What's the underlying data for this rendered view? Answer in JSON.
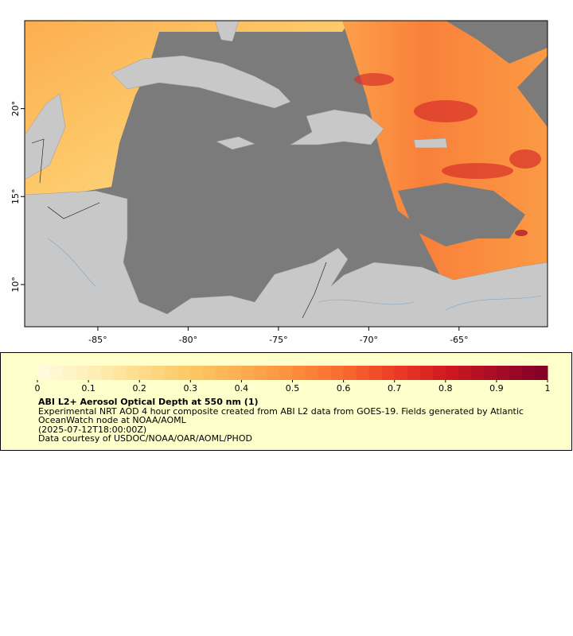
{
  "map": {
    "xlim": [
      -89.05,
      -60.1
    ],
    "ylim": [
      7.6,
      25.0
    ],
    "xticks": [
      {
        "value": -85,
        "label": "-85°"
      },
      {
        "value": -80,
        "label": "-80°"
      },
      {
        "value": -75,
        "label": "-75°"
      },
      {
        "value": -70,
        "label": "-70°"
      },
      {
        "value": -65,
        "label": "-65°"
      }
    ],
    "yticks": [
      {
        "value": 10,
        "label": "10°"
      },
      {
        "value": 15,
        "label": "15°"
      },
      {
        "value": 20,
        "label": "20°"
      }
    ]
  },
  "colorbar": {
    "lim": [
      0,
      1
    ],
    "ticks": [
      0,
      0.1,
      0.2,
      0.3,
      0.4,
      0.5,
      0.6,
      0.7,
      0.8,
      0.9,
      1
    ],
    "colors": [
      "#fffbe0",
      "#fff0b8",
      "#fedc8c",
      "#fdc765",
      "#fcae4f",
      "#fc8f3b",
      "#f86a2f",
      "#ec3c25",
      "#d11920",
      "#a70b26",
      "#800026"
    ],
    "title": "ABI L2+ Aerosol Optical Depth at 550 nm (1)",
    "description": "Experimental NRT AOD 4 hour composite created from ABI L2 data from GOES-19. Fields generated by Atlantic OceanWatch node at NOAA/AOML",
    "timestamp": "(2025-07-12T18:00:00Z)",
    "credit": "Data courtesy of USDOC/NOAA/OAR/AOML/PHOD"
  }
}
